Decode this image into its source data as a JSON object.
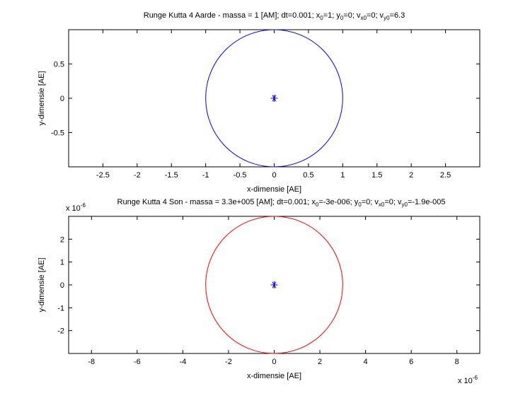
{
  "window": {
    "background": "#ffffff"
  },
  "chart_data": [
    {
      "type": "line",
      "title_parts": [
        {
          "t": "Runge Kutta 4 Aarde - massa = 1 [AM]; dt=0.001; x"
        },
        {
          "t": "0",
          "sub": true
        },
        {
          "t": "=1; y"
        },
        {
          "t": "0",
          "sub": true
        },
        {
          "t": "=0; v"
        },
        {
          "t": "x0",
          "sub": true
        },
        {
          "t": "=0; v"
        },
        {
          "t": "y0",
          "sub": true
        },
        {
          "t": "=6.3"
        }
      ],
      "xlabel": "x-dimensie [AE]",
      "ylabel": "y-dimensie [AE]",
      "xlim": [
        -3,
        3
      ],
      "ylim": [
        -1,
        1
      ],
      "xticks": [
        -2.5,
        -2,
        -1.5,
        -1,
        -0.5,
        0,
        0.5,
        1,
        1.5,
        2,
        2.5
      ],
      "xtick_labels": [
        "-2.5",
        "-2",
        "-1.5",
        "-1",
        "-0.5",
        "0",
        "0.5",
        "1",
        "1.5",
        "2",
        "2.5"
      ],
      "yticks": [
        -0.5,
        0,
        0.5
      ],
      "ytick_labels": [
        "-0.5",
        "0",
        "0.5"
      ],
      "grid": false,
      "series": [
        {
          "kind": "orbit",
          "center": [
            0,
            0
          ],
          "radius": 1,
          "color": "#0000ff"
        },
        {
          "kind": "marker",
          "marker": "*",
          "x": 0,
          "y": 0,
          "color": "#0000ff"
        }
      ]
    },
    {
      "type": "line",
      "exponent_label_y": "x 10",
      "exponent_power_y": "-6",
      "exponent_label_x": "x 10",
      "exponent_power_x": "-6",
      "title_parts": [
        {
          "t": "Runge Kutta 4 Son - massa = 3.3e+005 [AM]; dt=0.001; x"
        },
        {
          "t": "0",
          "sub": true
        },
        {
          "t": "=-3e-006; y"
        },
        {
          "t": "0",
          "sub": true
        },
        {
          "t": "=0; v"
        },
        {
          "t": "x0",
          "sub": true
        },
        {
          "t": "=0; v"
        },
        {
          "t": "y0",
          "sub": true
        },
        {
          "t": "=-1.9e-005"
        }
      ],
      "xlabel": "x-dimensie [AE]",
      "ylabel": "y-dimensie [AE]",
      "xlim": [
        -9,
        9
      ],
      "ylim": [
        -3,
        3
      ],
      "xticks": [
        -8,
        -6,
        -4,
        -2,
        0,
        2,
        4,
        6,
        8
      ],
      "xtick_labels": [
        "-8",
        "-6",
        "-4",
        "-2",
        "0",
        "2",
        "4",
        "6",
        "8"
      ],
      "yticks": [
        -2,
        -1,
        0,
        1,
        2
      ],
      "ytick_labels": [
        "-2",
        "-1",
        "0",
        "1",
        "2"
      ],
      "grid": false,
      "series": [
        {
          "kind": "orbit",
          "center": [
            0,
            0
          ],
          "radius": 3,
          "color": "#ff0000"
        },
        {
          "kind": "marker",
          "marker": "*",
          "x": 0,
          "y": 0,
          "color": "#0000ff"
        }
      ]
    }
  ]
}
